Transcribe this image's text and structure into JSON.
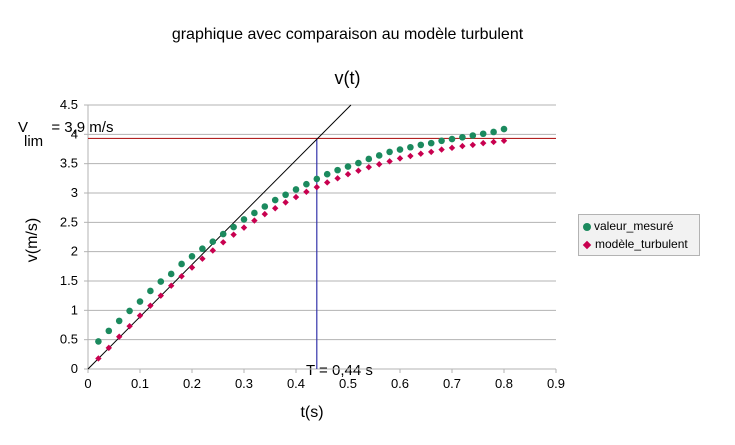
{
  "page_title": "graphique avec comparaison au modèle turbulent",
  "chart_data": {
    "type": "scatter",
    "title": "v(t)",
    "xlabel": "t(s)",
    "ylabel": "v(m/s)",
    "xlim": [
      0,
      0.9
    ],
    "ylim": [
      0,
      4.5
    ],
    "x_ticks": [
      "0",
      "0.1",
      "0.2",
      "0.3",
      "0.4",
      "0.5",
      "0.6",
      "0.7",
      "0.8",
      "0.9"
    ],
    "y_ticks": [
      "0",
      "0.5",
      "1",
      "1.5",
      "2",
      "2.5",
      "3",
      "3.5",
      "4",
      "4.5"
    ],
    "grid": "horizontal",
    "legend": "right",
    "series": [
      {
        "name": "valeur_mesuré",
        "marker": "circle",
        "color": "#1b8a5e",
        "x": [
          0.02,
          0.04,
          0.06,
          0.08,
          0.1,
          0.12,
          0.14,
          0.16,
          0.18,
          0.2,
          0.22,
          0.24,
          0.26,
          0.28,
          0.3,
          0.32,
          0.34,
          0.36,
          0.38,
          0.4,
          0.42,
          0.44,
          0.46,
          0.48,
          0.5,
          0.52,
          0.54,
          0.56,
          0.58,
          0.6,
          0.62,
          0.64,
          0.66,
          0.68,
          0.7,
          0.72,
          0.74,
          0.76,
          0.78,
          0.8
        ],
        "y": [
          0.47,
          0.65,
          0.82,
          0.99,
          1.15,
          1.33,
          1.49,
          1.62,
          1.79,
          1.92,
          2.05,
          2.17,
          2.3,
          2.42,
          2.55,
          2.66,
          2.77,
          2.88,
          2.97,
          3.06,
          3.15,
          3.24,
          3.32,
          3.39,
          3.45,
          3.51,
          3.58,
          3.64,
          3.7,
          3.74,
          3.78,
          3.82,
          3.85,
          3.89,
          3.92,
          3.95,
          3.98,
          4.01,
          4.04,
          4.09
        ]
      },
      {
        "name": "modèle_turbulent",
        "marker": "diamond",
        "color": "#c8004f",
        "x": [
          0.02,
          0.04,
          0.06,
          0.08,
          0.1,
          0.12,
          0.14,
          0.16,
          0.18,
          0.2,
          0.22,
          0.24,
          0.26,
          0.28,
          0.3,
          0.32,
          0.34,
          0.36,
          0.38,
          0.4,
          0.42,
          0.44,
          0.46,
          0.48,
          0.5,
          0.52,
          0.54,
          0.56,
          0.58,
          0.6,
          0.62,
          0.64,
          0.66,
          0.68,
          0.7,
          0.72,
          0.74,
          0.76,
          0.78,
          0.8
        ],
        "y": [
          0.18,
          0.36,
          0.55,
          0.73,
          0.91,
          1.08,
          1.25,
          1.42,
          1.58,
          1.73,
          1.88,
          2.02,
          2.16,
          2.29,
          2.41,
          2.53,
          2.64,
          2.74,
          2.84,
          2.93,
          3.02,
          3.1,
          3.18,
          3.25,
          3.32,
          3.38,
          3.44,
          3.49,
          3.54,
          3.59,
          3.63,
          3.67,
          3.7,
          3.74,
          3.77,
          3.8,
          3.82,
          3.85,
          3.87,
          3.89
        ]
      }
    ],
    "annotations": {
      "vlim_label": "V",
      "vlim_value": " = 3,9 m/s",
      "vlim_subscript": "lim",
      "vlim": 3.93,
      "tau_label": "T = 0,44 s",
      "tau": 0.44,
      "tangent_slope": 8.9
    },
    "colors": {
      "vlim_line": "#b22222",
      "tau_line": "#3333aa",
      "tangent_line": "#000000",
      "axis": "#b3b3b3",
      "grid": "#b3b3b3"
    }
  }
}
